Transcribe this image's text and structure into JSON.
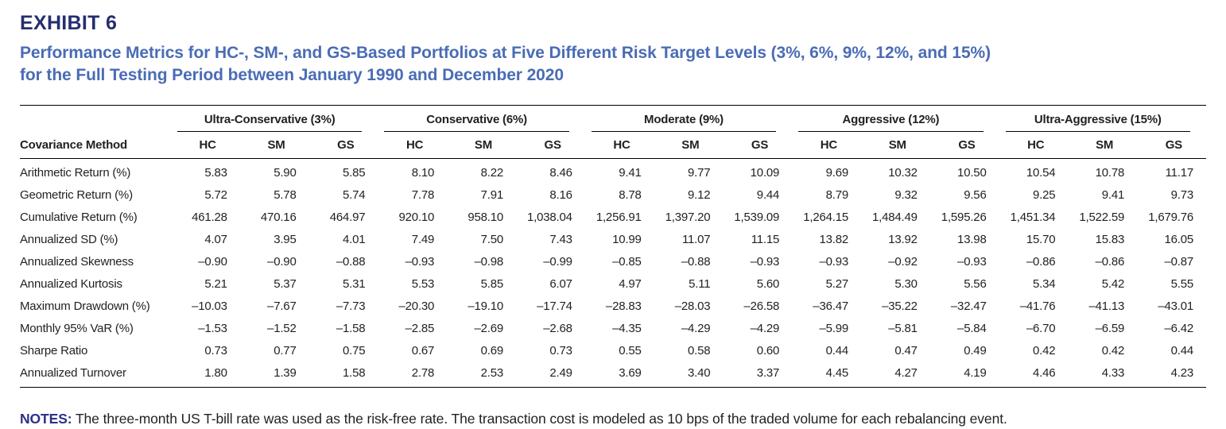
{
  "exhibit": {
    "label": "EXHIBIT 6",
    "title_line1": "Performance Metrics for HC-, SM-, and GS-Based Portfolios at Five Different Risk Target Levels (3%, 6%, 9%, 12%, and 15%)",
    "title_line2": "for the Full Testing Period between January 1990 and December 2020"
  },
  "table": {
    "row_header": "Covariance Method",
    "groups": [
      {
        "label": "Ultra-Conservative (3%)",
        "columns": [
          "HC",
          "SM",
          "GS"
        ]
      },
      {
        "label": "Conservative (6%)",
        "columns": [
          "HC",
          "SM",
          "GS"
        ]
      },
      {
        "label": "Moderate (9%)",
        "columns": [
          "HC",
          "SM",
          "GS"
        ]
      },
      {
        "label": "Aggressive (12%)",
        "columns": [
          "HC",
          "SM",
          "GS"
        ]
      },
      {
        "label": "Ultra-Aggressive (15%)",
        "columns": [
          "HC",
          "SM",
          "GS"
        ]
      }
    ],
    "rows": [
      {
        "label": "Arithmetic Return (%)",
        "values": [
          "5.83",
          "5.90",
          "5.85",
          "8.10",
          "8.22",
          "8.46",
          "9.41",
          "9.77",
          "10.09",
          "9.69",
          "10.32",
          "10.50",
          "10.54",
          "10.78",
          "11.17"
        ]
      },
      {
        "label": "Geometric Return (%)",
        "values": [
          "5.72",
          "5.78",
          "5.74",
          "7.78",
          "7.91",
          "8.16",
          "8.78",
          "9.12",
          "9.44",
          "8.79",
          "9.32",
          "9.56",
          "9.25",
          "9.41",
          "9.73"
        ]
      },
      {
        "label": "Cumulative Return (%)",
        "values": [
          "461.28",
          "470.16",
          "464.97",
          "920.10",
          "958.10",
          "1,038.04",
          "1,256.91",
          "1,397.20",
          "1,539.09",
          "1,264.15",
          "1,484.49",
          "1,595.26",
          "1,451.34",
          "1,522.59",
          "1,679.76"
        ]
      },
      {
        "label": "Annualized SD (%)",
        "values": [
          "4.07",
          "3.95",
          "4.01",
          "7.49",
          "7.50",
          "7.43",
          "10.99",
          "11.07",
          "11.15",
          "13.82",
          "13.92",
          "13.98",
          "15.70",
          "15.83",
          "16.05"
        ]
      },
      {
        "label": "Annualized Skewness",
        "values": [
          "–0.90",
          "–0.90",
          "–0.88",
          "–0.93",
          "–0.98",
          "–0.99",
          "–0.85",
          "–0.88",
          "–0.93",
          "–0.93",
          "–0.92",
          "–0.93",
          "–0.86",
          "–0.86",
          "–0.87"
        ]
      },
      {
        "label": "Annualized Kurtosis",
        "values": [
          "5.21",
          "5.37",
          "5.31",
          "5.53",
          "5.85",
          "6.07",
          "4.97",
          "5.11",
          "5.60",
          "5.27",
          "5.30",
          "5.56",
          "5.34",
          "5.42",
          "5.55"
        ]
      },
      {
        "label": "Maximum Drawdown (%)",
        "values": [
          "–10.03",
          "–7.67",
          "–7.73",
          "–20.30",
          "–19.10",
          "–17.74",
          "–28.83",
          "–28.03",
          "–26.58",
          "–36.47",
          "–35.22",
          "–32.47",
          "–41.76",
          "–41.13",
          "–43.01"
        ]
      },
      {
        "label": "Monthly 95% VaR (%)",
        "values": [
          "–1.53",
          "–1.52",
          "–1.58",
          "–2.85",
          "–2.69",
          "–2.68",
          "–4.35",
          "–4.29",
          "–4.29",
          "–5.99",
          "–5.81",
          "–5.84",
          "–6.70",
          "–6.59",
          "–6.42"
        ]
      },
      {
        "label": "Sharpe Ratio",
        "values": [
          "0.73",
          "0.77",
          "0.75",
          "0.67",
          "0.69",
          "0.73",
          "0.55",
          "0.58",
          "0.60",
          "0.44",
          "0.47",
          "0.49",
          "0.42",
          "0.42",
          "0.44"
        ]
      },
      {
        "label": "Annualized Turnover",
        "values": [
          "1.80",
          "1.39",
          "1.58",
          "2.78",
          "2.53",
          "2.49",
          "3.69",
          "3.40",
          "3.37",
          "4.45",
          "4.27",
          "4.19",
          "4.46",
          "4.33",
          "4.23"
        ]
      }
    ]
  },
  "notes": {
    "label": "NOTES:",
    "text": " The three-month US T-bill rate was used as the risk-free rate. The transaction cost is modeled as 10 bps of the traded volume for each rebalancing event."
  },
  "colors": {
    "title_navy": "#262e6e",
    "subtitle_blue": "#4a6cb5",
    "notes_blue": "#2d3089",
    "text": "#231f20",
    "rule": "#000000"
  }
}
